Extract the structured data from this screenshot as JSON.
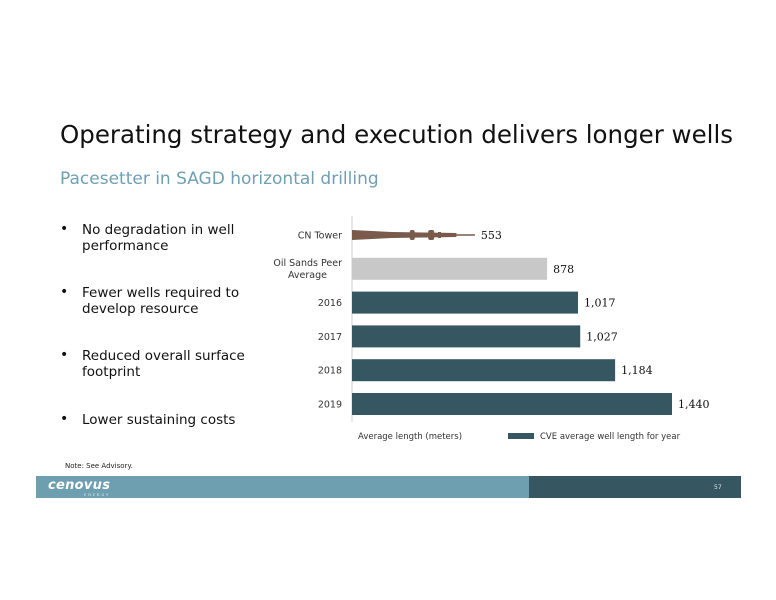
{
  "title": "Operating strategy and execution delivers longer wells",
  "subtitle": "Pacesetter in SAGD horizontal drilling",
  "bullets": [
    "No degradation in well performance",
    "Fewer wells required to develop resource",
    "Reduced overall surface footprint",
    "Lower sustaining costs"
  ],
  "note": "Note: See Advisory.",
  "logo": {
    "name": "cenovus",
    "sub": "ENERGY"
  },
  "page_number": "57",
  "colors": {
    "cve_bar": "#365661",
    "peer_bar": "#c8c8c8",
    "cn_tower": "#7a5a4a",
    "subtitle": "#6f9fb2"
  },
  "chart_data": {
    "type": "bar",
    "orientation": "horizontal",
    "categories": [
      "CN Tower",
      "Oil Sands Peer Average",
      "2016",
      "2017",
      "2018",
      "2019"
    ],
    "values": [
      553,
      878,
      1017,
      1027,
      1184,
      1440
    ],
    "value_labels": [
      "553",
      "878",
      "1,017",
      "1,027",
      "1,184",
      "1,440"
    ],
    "xlabel": "Average length (meters)",
    "legend": {
      "label": "CVE average well length for year",
      "placement": "bottom"
    },
    "xlim": [
      0,
      1440
    ],
    "grid": false
  }
}
